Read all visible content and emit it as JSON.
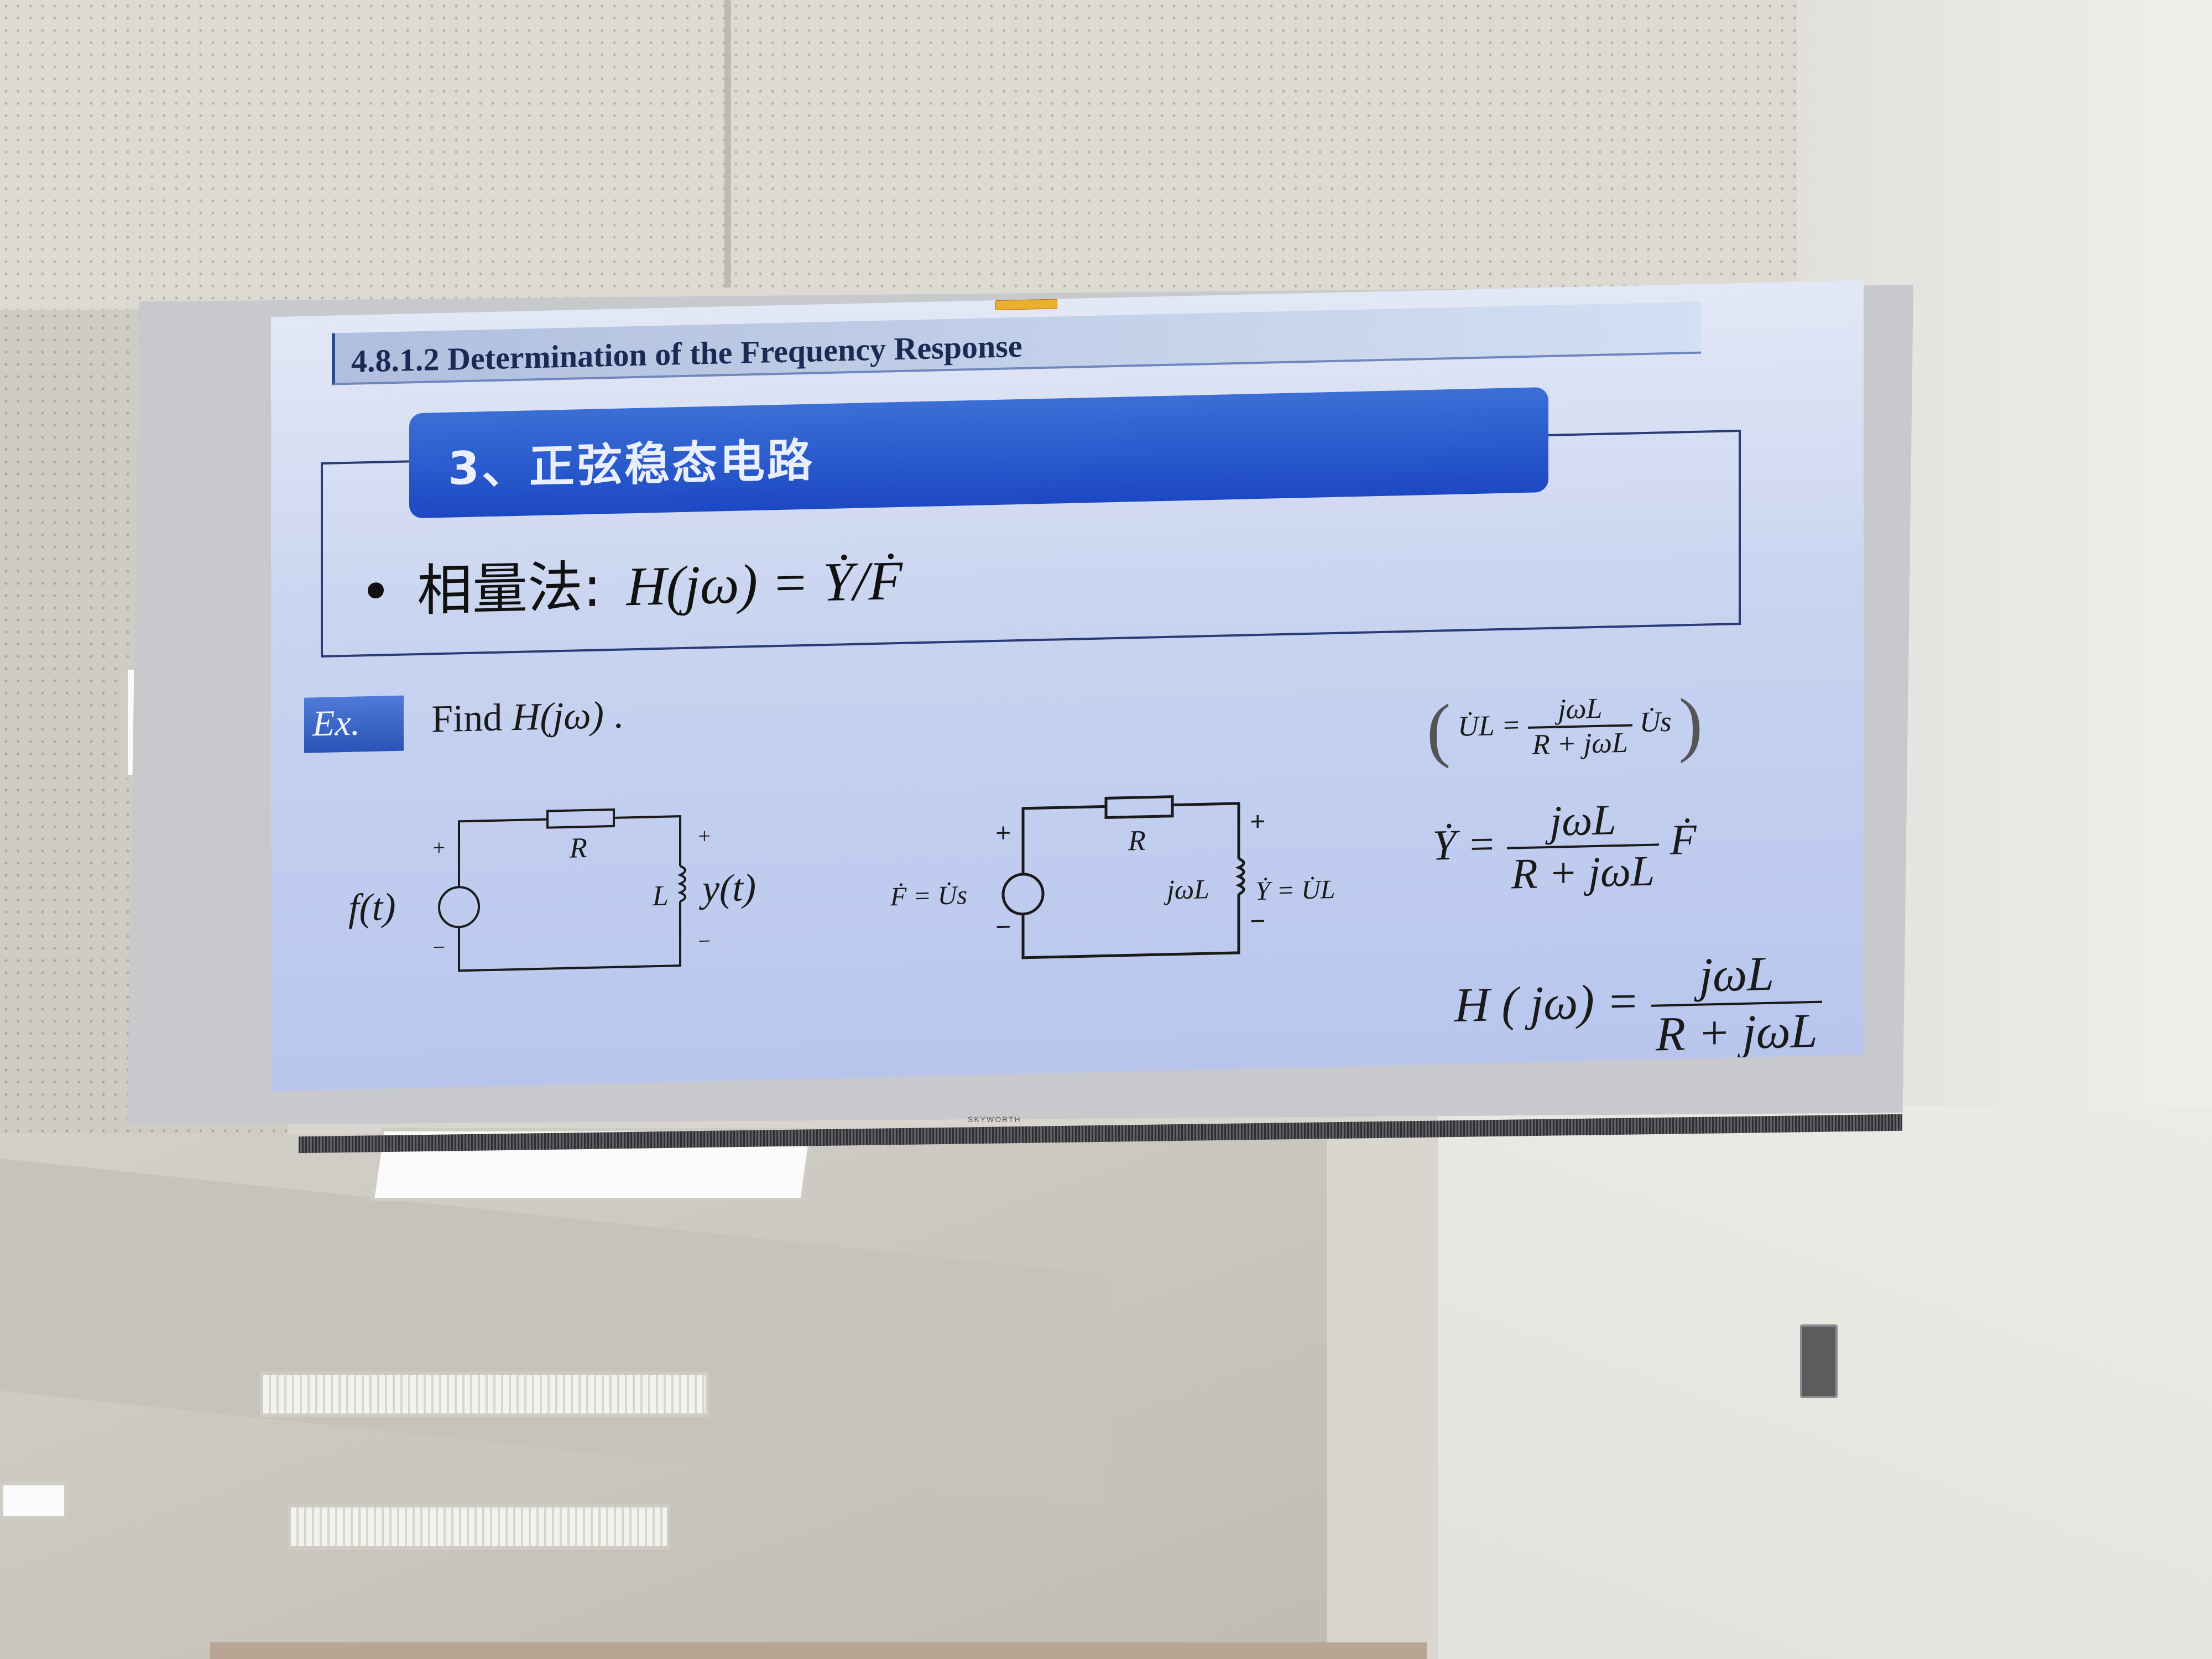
{
  "slide": {
    "title": "4.8.1.2 Determination of the Frequency Response",
    "section_label": "3、正弦稳态电路",
    "bullet": {
      "symbol": "•",
      "label": "相量法:",
      "formula": "H(jω) = Ẏ/Ḟ"
    },
    "example": {
      "badge": "Ex.",
      "prompt_prefix": "Find ",
      "prompt_math": "H(jω)",
      "prompt_suffix": " ."
    },
    "circuit_time": {
      "resistor_label": "R",
      "inductor_label": "L",
      "source_label": "f(t)",
      "output_label": "y(t)",
      "plus": "+",
      "minus": "−"
    },
    "circuit_phasor": {
      "resistor_label": "R",
      "inductor_label": "jωL",
      "source_label": "Ḟ = U̇s",
      "output_label": "Ẏ = U̇L",
      "plus": "+",
      "minus": "−"
    },
    "equations": {
      "eq1_lhs": "U̇L =",
      "eq1_num": "jωL",
      "eq1_den": "R + jωL",
      "eq1_rhs": "U̇s",
      "eq2_lhs": "Ẏ =",
      "eq2_num": "jωL",
      "eq2_den": "R + jωL",
      "eq2_rhs": "Ḟ",
      "eq3_lhs": "H ( jω) =",
      "eq3_num": "jωL",
      "eq3_den": "R + jωL"
    }
  },
  "tv": {
    "brand": "SKYWORTH"
  }
}
